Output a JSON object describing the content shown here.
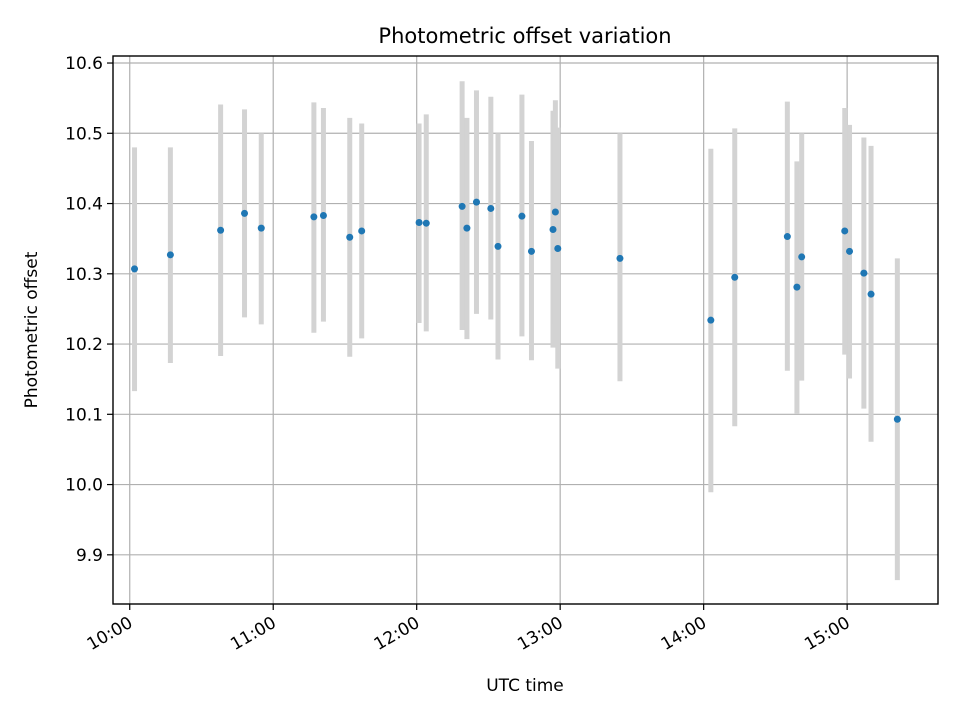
{
  "chart_data": {
    "type": "scatter",
    "title": "Photometric offset variation",
    "xlabel": "UTC time",
    "ylabel": "Photometric offset",
    "grid": true,
    "xlim": [
      "09:53",
      "15:38"
    ],
    "ylim": [
      9.83,
      10.61
    ],
    "x_ticks": [
      "10:00",
      "11:00",
      "12:00",
      "13:00",
      "14:00",
      "15:00"
    ],
    "y_ticks": [
      9.9,
      10.0,
      10.1,
      10.2,
      10.3,
      10.4,
      10.5,
      10.6
    ],
    "y_tick_labels": [
      "9.9",
      "10.0",
      "10.1",
      "10.2",
      "10.3",
      "10.4",
      "10.5",
      "10.6"
    ],
    "colors": {
      "points": "#1f77b4",
      "error_bars": "#d3d3d3",
      "grid": "#b0b0b0"
    },
    "series": [
      {
        "points": [
          {
            "x": "10:02",
            "y": 10.307,
            "ylow": 10.133,
            "yhigh": 10.48
          },
          {
            "x": "10:17",
            "y": 10.327,
            "ylow": 10.173,
            "yhigh": 10.48
          },
          {
            "x": "10:38",
            "y": 10.362,
            "ylow": 10.183,
            "yhigh": 10.541
          },
          {
            "x": "10:48",
            "y": 10.386,
            "ylow": 10.238,
            "yhigh": 10.534
          },
          {
            "x": "10:55",
            "y": 10.365,
            "ylow": 10.228,
            "yhigh": 10.5
          },
          {
            "x": "11:17",
            "y": 10.381,
            "ylow": 10.216,
            "yhigh": 10.544
          },
          {
            "x": "11:21",
            "y": 10.383,
            "ylow": 10.232,
            "yhigh": 10.536
          },
          {
            "x": "11:32",
            "y": 10.352,
            "ylow": 10.182,
            "yhigh": 10.522
          },
          {
            "x": "11:37",
            "y": 10.361,
            "ylow": 10.208,
            "yhigh": 10.514
          },
          {
            "x": "12:01",
            "y": 10.373,
            "ylow": 10.23,
            "yhigh": 10.514
          },
          {
            "x": "12:04",
            "y": 10.372,
            "ylow": 10.218,
            "yhigh": 10.527
          },
          {
            "x": "12:19",
            "y": 10.396,
            "ylow": 10.22,
            "yhigh": 10.574
          },
          {
            "x": "12:21",
            "y": 10.365,
            "ylow": 10.207,
            "yhigh": 10.522
          },
          {
            "x": "12:25",
            "y": 10.402,
            "ylow": 10.243,
            "yhigh": 10.561
          },
          {
            "x": "12:31",
            "y": 10.393,
            "ylow": 10.235,
            "yhigh": 10.552
          },
          {
            "x": "12:34",
            "y": 10.339,
            "ylow": 10.178,
            "yhigh": 10.5
          },
          {
            "x": "12:44",
            "y": 10.382,
            "ylow": 10.211,
            "yhigh": 10.555
          },
          {
            "x": "12:48",
            "y": 10.332,
            "ylow": 10.177,
            "yhigh": 10.489
          },
          {
            "x": "12:57",
            "y": 10.363,
            "ylow": 10.195,
            "yhigh": 10.532
          },
          {
            "x": "12:58",
            "y": 10.388,
            "ylow": 10.228,
            "yhigh": 10.547
          },
          {
            "x": "12:59",
            "y": 10.336,
            "ylow": 10.165,
            "yhigh": 10.508
          },
          {
            "x": "13:25",
            "y": 10.322,
            "ylow": 10.147,
            "yhigh": 10.5
          },
          {
            "x": "14:03",
            "y": 10.234,
            "ylow": 9.989,
            "yhigh": 10.478
          },
          {
            "x": "14:13",
            "y": 10.295,
            "ylow": 10.083,
            "yhigh": 10.507
          },
          {
            "x": "14:35",
            "y": 10.353,
            "ylow": 10.162,
            "yhigh": 10.545
          },
          {
            "x": "14:39",
            "y": 10.281,
            "ylow": 10.101,
            "yhigh": 10.46
          },
          {
            "x": "14:41",
            "y": 10.324,
            "ylow": 10.148,
            "yhigh": 10.5
          },
          {
            "x": "14:59",
            "y": 10.361,
            "ylow": 10.185,
            "yhigh": 10.536
          },
          {
            "x": "15:01",
            "y": 10.332,
            "ylow": 10.151,
            "yhigh": 10.512
          },
          {
            "x": "15:07",
            "y": 10.301,
            "ylow": 10.108,
            "yhigh": 10.494
          },
          {
            "x": "15:10",
            "y": 10.271,
            "ylow": 10.061,
            "yhigh": 10.482
          },
          {
            "x": "15:21",
            "y": 10.093,
            "ylow": 9.864,
            "yhigh": 10.322
          }
        ]
      }
    ]
  }
}
